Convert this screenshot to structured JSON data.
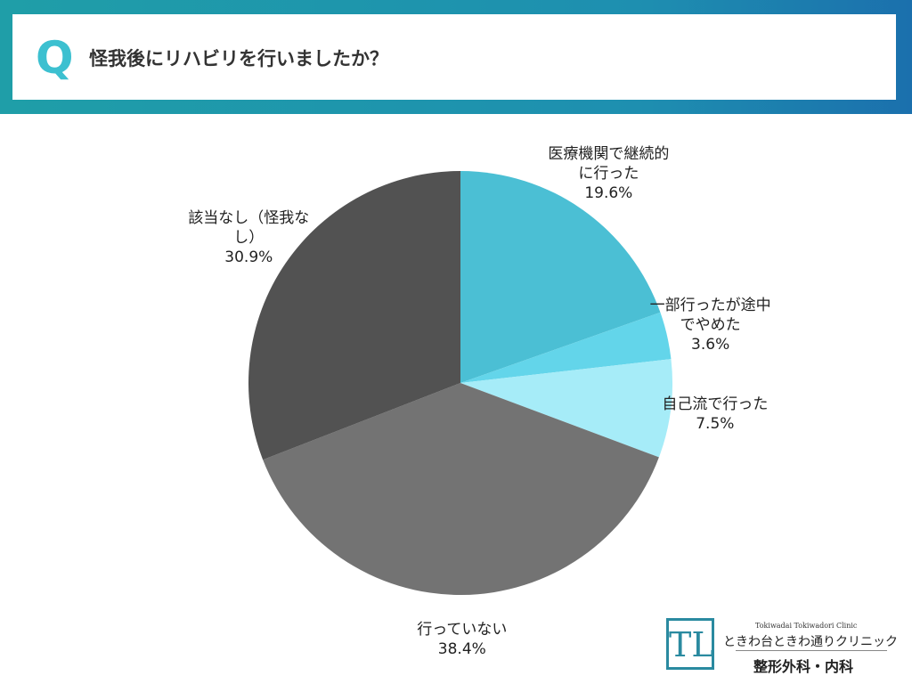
{
  "header": {
    "mark": "Q",
    "question": "怪我後にリハビリを行いましたか？"
  },
  "chart_data": {
    "type": "pie",
    "categories": [
      "医療機関で継続的に行った",
      "一部行ったが途中でやめた",
      "自己流で行った",
      "行っていない",
      "該当なし（怪我なし）"
    ],
    "values": [
      19.6,
      3.6,
      7.5,
      38.4,
      30.9
    ],
    "value_labels": [
      "19.6%",
      "3.6%",
      "7.5%",
      "38.4%",
      "30.9%"
    ],
    "colors": [
      "#4bbfd4",
      "#63d5ea",
      "#a6ecf8",
      "#737373",
      "#525252"
    ]
  },
  "logo": {
    "romaji": "Tokiwadai Tokiwadori Clinic",
    "name": "ときわ台ときわ通りクリニック",
    "departments": "整形外科・内科"
  }
}
